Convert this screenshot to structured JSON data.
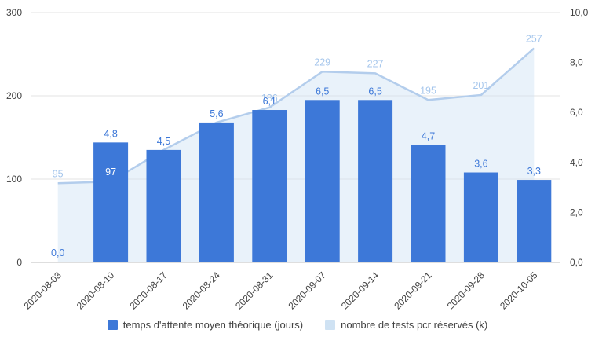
{
  "legend": {
    "series1": "temps d'attente moyen théorique (jours)",
    "series2": "nombre de tests pcr réservés (k)"
  },
  "colors": {
    "bar": "#3d78d8",
    "bar_label": "#3d78d8",
    "label_on_bar": "#ffffff",
    "area_fill": "#cfe2f3",
    "area_line": "#b3cdec",
    "area_label": "#a5c6ec",
    "grid": "#e3e3e3",
    "baseline": "#bdbdbd",
    "axis_text": "#424242"
  },
  "chart_data": {
    "type": "combo",
    "categories": [
      "2020-08-03",
      "2020-08-10",
      "2020-08-17",
      "2020-08-24",
      "2020-08-31",
      "2020-09-07",
      "2020-09-14",
      "2020-09-21",
      "2020-09-28",
      "2020-10-05"
    ],
    "series": [
      {
        "name": "temps d'attente moyen théorique (jours)",
        "type": "bar",
        "axis": "right",
        "values": [
          0.0,
          4.8,
          4.5,
          5.6,
          6.1,
          6.5,
          6.5,
          4.7,
          3.6,
          3.3
        ],
        "labels": [
          "0,0",
          "4,8",
          "4,5",
          "5,6",
          "6,1",
          "6,5",
          "6,5",
          "4,7",
          "3,6",
          "3,3"
        ]
      },
      {
        "name": "nombre de tests pcr réservés (k)",
        "type": "area",
        "axis": "left",
        "values": [
          95,
          97,
          135,
          168,
          186,
          229,
          227,
          195,
          201,
          257
        ],
        "labels": [
          "95",
          "97",
          "",
          "",
          "186",
          "229",
          "227",
          "195",
          "201",
          "257"
        ]
      }
    ],
    "left_axis": {
      "ticks": [
        "0",
        "100",
        "200",
        "300"
      ],
      "range": [
        0,
        300
      ]
    },
    "right_axis": {
      "ticks": [
        "0,0",
        "2,0",
        "4,0",
        "6,0",
        "8,0",
        "10,0"
      ],
      "range": [
        0,
        10
      ]
    },
    "grid": true,
    "legend_position": "bottom",
    "title": "",
    "xlabel": "",
    "ylabel_left": "",
    "ylabel_right": ""
  }
}
